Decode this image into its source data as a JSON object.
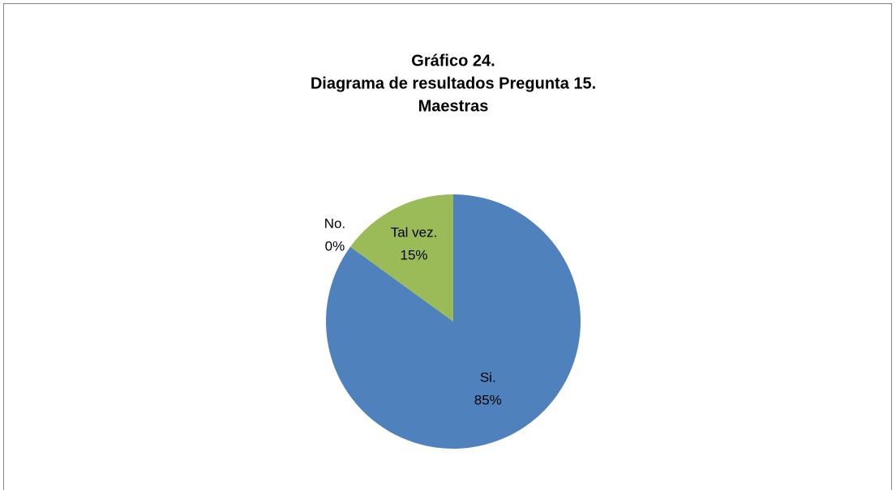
{
  "chart_data": {
    "type": "pie",
    "title": [
      "Gráfico 24.",
      "Diagrama de resultados Pregunta 15.",
      "Maestras"
    ],
    "categories": [
      "Si.",
      "No.",
      "Tal vez."
    ],
    "values": [
      85,
      0,
      15
    ],
    "value_labels": [
      "85%",
      "0%",
      "15%"
    ],
    "colors": [
      "#4f81bd",
      "#c0504d",
      "#9bbb59"
    ]
  }
}
